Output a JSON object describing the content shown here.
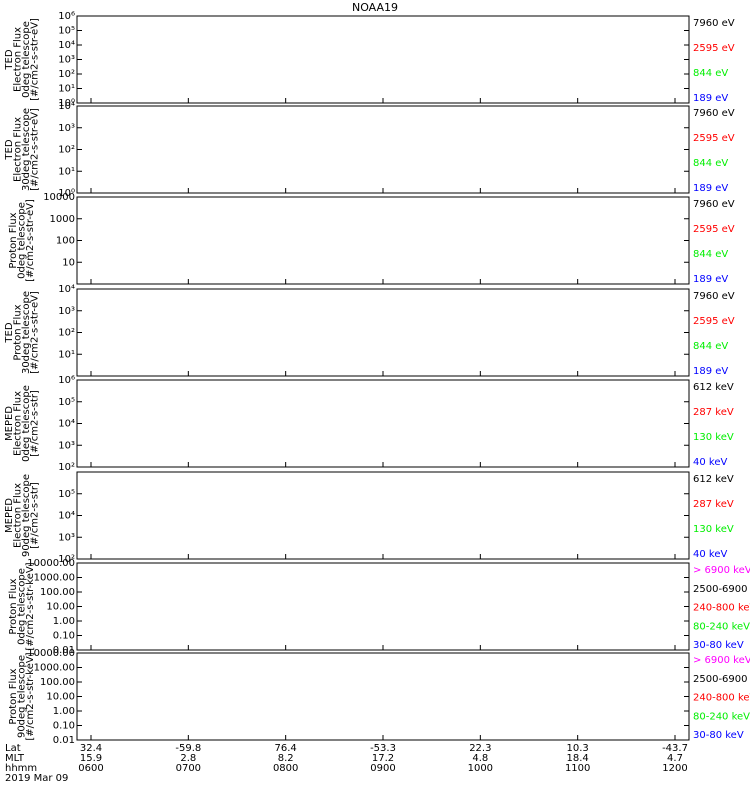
{
  "title": "NOAA19",
  "colors": {
    "black": "#000000",
    "red": "#ff0000",
    "green": "#00ee00",
    "blue": "#0000ff",
    "magenta": "#ff00ff"
  },
  "chart_data": {
    "type": "line",
    "title": "NOAA19",
    "x_axis": {
      "row_labels": [
        "Lat",
        "MLT",
        "hhmm"
      ],
      "date_label": "2019 Mar 09",
      "ticks": [
        {
          "hhmm": "0600",
          "lat": "32.4",
          "mlt": "15.9"
        },
        {
          "hhmm": "0700",
          "lat": "-59.8",
          "mlt": "2.8"
        },
        {
          "hhmm": "0800",
          "lat": "76.4",
          "mlt": "8.2"
        },
        {
          "hhmm": "0900",
          "lat": "-53.3",
          "mlt": "17.2"
        },
        {
          "hhmm": "1000",
          "lat": "22.3",
          "mlt": "4.8"
        },
        {
          "hhmm": "1100",
          "lat": "10.3",
          "mlt": "18.4"
        },
        {
          "hhmm": "1200",
          "lat": "-43.7",
          "mlt": "4.7"
        }
      ]
    },
    "panels": [
      {
        "ylabel": [
          "TED",
          "Electron Flux",
          "0deg telescope",
          "[#/cm2-s-str-eV]"
        ],
        "y_scale": "log",
        "ylim": [
          1,
          1000000
        ],
        "ticks": [
          1,
          10,
          100,
          1000,
          10000,
          100000,
          1000000
        ],
        "tick_labels": [
          "10⁰",
          "10¹",
          "10²",
          "10³",
          "10⁴",
          "10⁵",
          "10⁶"
        ],
        "legend": [
          {
            "label": "7960 eV",
            "color": "#000000"
          },
          {
            "label": "2595 eV",
            "color": "#ff0000"
          },
          {
            "label": "844 eV",
            "color": "#00ee00"
          },
          {
            "label": "189 eV",
            "color": "#0000ff"
          }
        ]
      },
      {
        "ylabel": [
          "TED",
          "Electron Flux",
          "30deg telescope",
          "[#/cm2-s-str-eV]"
        ],
        "y_scale": "log",
        "ylim": [
          1,
          10000
        ],
        "ticks": [
          1,
          10,
          100,
          1000,
          10000
        ],
        "tick_labels": [
          "10⁰",
          "10¹",
          "10²",
          "10³",
          "10⁴"
        ],
        "legend": [
          {
            "label": "7960 eV",
            "color": "#000000"
          },
          {
            "label": "2595 eV",
            "color": "#ff0000"
          },
          {
            "label": "844 eV",
            "color": "#00ee00"
          },
          {
            "label": "189 eV",
            "color": "#0000ff"
          }
        ]
      },
      {
        "ylabel": [
          "Proton Flux",
          "0deg telescope",
          "[#/cm2-s-str-eV]"
        ],
        "y_scale": "log",
        "ylim": [
          1,
          10000
        ],
        "ticks": [
          10,
          100,
          1000,
          10000
        ],
        "tick_labels": [
          "10",
          "100",
          "1000",
          "10000"
        ],
        "legend": [
          {
            "label": "7960 eV",
            "color": "#000000"
          },
          {
            "label": "2595 eV",
            "color": "#ff0000"
          },
          {
            "label": "844 eV",
            "color": "#00ee00"
          },
          {
            "label": "189 eV",
            "color": "#0000ff"
          }
        ]
      },
      {
        "ylabel": [
          "TED",
          "Proton Flux",
          "30deg telescope",
          "[#/cm2-s-str-eV]"
        ],
        "y_scale": "log",
        "ylim": [
          1,
          10000
        ],
        "ticks": [
          10,
          100,
          1000,
          10000
        ],
        "tick_labels": [
          "10¹",
          "10²",
          "10³",
          "10⁴"
        ],
        "legend": [
          {
            "label": "7960 eV",
            "color": "#000000"
          },
          {
            "label": "2595 eV",
            "color": "#ff0000"
          },
          {
            "label": "844 eV",
            "color": "#00ee00"
          },
          {
            "label": "189 eV",
            "color": "#0000ff"
          }
        ]
      },
      {
        "ylabel": [
          "MEPED",
          "Electron Flux",
          "0deg telescope",
          "[#/cm2-s-str]"
        ],
        "y_scale": "log",
        "ylim": [
          100,
          1000000
        ],
        "ticks": [
          100,
          1000,
          10000,
          100000,
          1000000
        ],
        "tick_labels": [
          "10²",
          "10³",
          "10⁴",
          "10⁵",
          "10⁶"
        ],
        "legend": [
          {
            "label": "612 keV",
            "color": "#000000"
          },
          {
            "label": "287 keV",
            "color": "#ff0000"
          },
          {
            "label": "130 keV",
            "color": "#00ee00"
          },
          {
            "label": "40 keV",
            "color": "#0000ff"
          }
        ]
      },
      {
        "ylabel": [
          "MEPED",
          "Electron Flux",
          "90deg telescope",
          "[#/cm2-s-str]"
        ],
        "y_scale": "log",
        "ylim": [
          100,
          1000000
        ],
        "ticks": [
          100,
          1000,
          10000,
          100000
        ],
        "tick_labels": [
          "10²",
          "10³",
          "10⁴",
          "10⁵"
        ],
        "legend": [
          {
            "label": "612 keV",
            "color": "#000000"
          },
          {
            "label": "287 keV",
            "color": "#ff0000"
          },
          {
            "label": "130 keV",
            "color": "#00ee00"
          },
          {
            "label": "40 keV",
            "color": "#0000ff"
          }
        ]
      },
      {
        "ylabel": [
          "Proton Flux",
          "0deg telescope",
          "[#/cm2-s-str-keV]"
        ],
        "y_scale": "log",
        "ylim": [
          0.01,
          10000
        ],
        "ticks": [
          0.01,
          0.1,
          1,
          10,
          100,
          1000,
          10000
        ],
        "tick_labels": [
          "0.01",
          "0.10",
          "1.00",
          "10.00",
          "100.00",
          "1000.00",
          "10000.00"
        ],
        "legend": [
          {
            "label": "> 6900 keV",
            "color": "#ff00ff"
          },
          {
            "label": "2500-6900",
            "color": "#000000"
          },
          {
            "label": "240-800 keV",
            "color": "#ff0000"
          },
          {
            "label": "80-240 keV",
            "color": "#00ee00"
          },
          {
            "label": "30-80 keV",
            "color": "#0000ff"
          }
        ]
      },
      {
        "ylabel": [
          "Proton Flux",
          "90deg telescope",
          "[#/cm2-s-str-keV]"
        ],
        "y_scale": "log",
        "ylim": [
          0.01,
          10000
        ],
        "ticks": [
          0.01,
          0.1,
          1,
          10,
          100,
          1000,
          10000
        ],
        "tick_labels": [
          "0.01",
          "0.10",
          "1.00",
          "10.00",
          "100.00",
          "1000.00",
          "10000.00"
        ],
        "legend": [
          {
            "label": "> 6900 keV",
            "color": "#ff00ff"
          },
          {
            "label": "2500-6900",
            "color": "#000000"
          },
          {
            "label": "240-800 keV",
            "color": "#ff0000"
          },
          {
            "label": "80-240 keV",
            "color": "#00ee00"
          },
          {
            "label": "30-80 keV",
            "color": "#0000ff"
          }
        ]
      }
    ]
  }
}
